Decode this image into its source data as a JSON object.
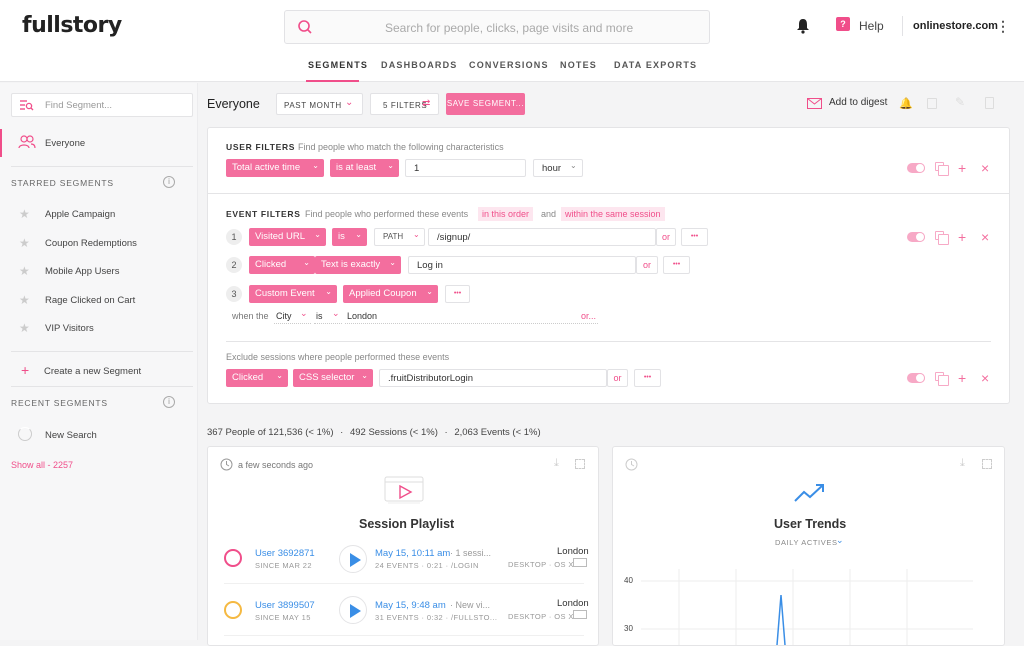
{
  "app": {
    "logo": "fullstory",
    "store": "onlinestore.com",
    "help": "Help",
    "help_badge": "?"
  },
  "search": {
    "placeholder": "Search for people, clicks, page visits and more"
  },
  "nav": [
    "SEGMENTS",
    "DASHBOARDS",
    "CONVERSIONS",
    "NOTES",
    "DATA EXPORTS"
  ],
  "sidebar": {
    "find_placeholder": "Find Segment...",
    "active": "Everyone",
    "starred_header": "STARRED SEGMENTS",
    "starred": [
      "Apple Campaign",
      "Coupon Redemptions",
      "Mobile App Users",
      "Rage Clicked on Cart",
      "VIP Visitors"
    ],
    "create": "Create a new Segment",
    "recent_header": "RECENT SEGMENTS",
    "recent": [
      "New Search"
    ],
    "show_all": "Show all - 2257"
  },
  "toolbar": {
    "title": "Everyone",
    "period": "PAST MONTH",
    "filters": "5 FILTERS",
    "save": "SAVE SEGMENT...",
    "digest": "Add to digest"
  },
  "user_filters": {
    "header": "USER FILTERS",
    "desc": "Find people who match the following characteristics",
    "field": "Total active time",
    "op": "is at least",
    "value": "1",
    "unit": "hour"
  },
  "event_filters": {
    "header": "EVENT FILTERS",
    "desc": "Find people who performed these events",
    "tag1": "in this order",
    "and": "and",
    "tag2": "within the same session",
    "rows": [
      {
        "n": "1",
        "a": "Visited URL",
        "b": "is",
        "c": "PATH",
        "val": "/signup/"
      },
      {
        "n": "2",
        "a": "Clicked",
        "b": "Text is exactly",
        "val": "Log in"
      },
      {
        "n": "3",
        "a": "Custom Event",
        "b": "Applied Coupon"
      }
    ],
    "when_the": "when the",
    "when_field": "City",
    "when_op": "is",
    "when_val": "London",
    "or": "or",
    "or_dots": "or...",
    "more": "•••"
  },
  "exclude": {
    "desc": "Exclude sessions where people performed these events",
    "a": "Clicked",
    "b": "CSS selector",
    "val": ".fruitDistributorLogin"
  },
  "stats": {
    "people": "367 People of 121,536 (< 1%)",
    "sessions": "492 Sessions (< 1%)",
    "events": "2,063 Events (< 1%)",
    "dot": "·"
  },
  "playlist": {
    "time": "a few seconds ago",
    "title": "Session Playlist",
    "rows": [
      {
        "user": "User 3692871",
        "since": "SINCE MAR 22",
        "when": "May 15, 10:11 am",
        "extra": "· 1 sessi...",
        "meta": "24 EVENTS · 0:21 · /LOGIN",
        "city": "London",
        "device": "DESKTOP · OS X"
      },
      {
        "user": "User 3899507",
        "since": "SINCE MAY 15",
        "when": "May 15, 9:48 am",
        "extra": "· New vi...",
        "meta": "31 EVENTS · 0:32 · /FULLSTO...",
        "city": "London",
        "device": "DESKTOP · OS X"
      }
    ]
  },
  "trends": {
    "title": "User Trends",
    "metric": "DAILY ACTIVES"
  },
  "chart_data": {
    "type": "line",
    "yticks": [
      40,
      30
    ],
    "note": "spike near middle",
    "x": [],
    "values": []
  },
  "colors": {
    "accent": "#f04e8a",
    "link": "#3a8ee6"
  }
}
